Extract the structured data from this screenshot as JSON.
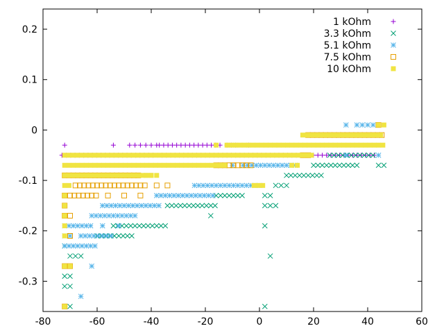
{
  "chart_data": {
    "type": "scatter",
    "title": "",
    "xlabel": "",
    "ylabel": "",
    "xlim": [
      -80,
      60
    ],
    "ylim": [
      -0.36,
      0.24
    ],
    "x_ticks": [
      -80,
      -60,
      -40,
      -20,
      0,
      20,
      40,
      60
    ],
    "x_tick_labels": [
      "-80",
      "-60",
      "-40",
      "-20",
      "0",
      "20",
      "40",
      "60"
    ],
    "y_ticks": [
      -0.3,
      -0.2,
      -0.1,
      0,
      0.1,
      0.2
    ],
    "y_tick_labels": [
      "-0.3",
      "-0.2",
      "-0.1",
      "0",
      "0.1",
      "0.2"
    ],
    "grid": false,
    "legend_position": "top-right",
    "series": [
      {
        "name": "1 kOhm",
        "color": "#9400d3",
        "marker": "plus",
        "segments": [
          {
            "x_from": -73,
            "x_to": -38,
            "step": 1.6,
            "y": -0.05
          },
          {
            "x_from": -36,
            "x_to": 43,
            "step": 1.6,
            "y": -0.05
          },
          {
            "x_from": -37,
            "x_to": -14,
            "step": 1.6,
            "y": -0.03
          },
          {
            "x_from": -12,
            "x_to": -8,
            "step": 1.6,
            "y": -0.03
          }
        ],
        "points": [
          [
            -72,
            -0.03
          ],
          [
            -54,
            -0.03
          ],
          [
            -48,
            -0.03
          ],
          [
            -46,
            -0.03
          ],
          [
            -44,
            -0.03
          ],
          [
            -42,
            -0.03
          ],
          [
            -40,
            -0.03
          ],
          [
            -38,
            -0.03
          ],
          [
            -4,
            -0.03
          ]
        ]
      },
      {
        "name": "3.3 kOhm",
        "color": "#009e73",
        "marker": "cross",
        "segments": [
          {
            "x_from": -54,
            "x_to": -34,
            "step": 1.6,
            "y": -0.19
          },
          {
            "x_from": -60,
            "x_to": -46,
            "step": 1.6,
            "y": -0.21
          },
          {
            "x_from": -34,
            "x_to": -16,
            "step": 1.6,
            "y": -0.15
          },
          {
            "x_from": -16,
            "x_to": -6,
            "step": 1.6,
            "y": -0.13
          },
          {
            "x_from": 20,
            "x_to": 36,
            "step": 1.6,
            "y": -0.07
          },
          {
            "x_from": 10,
            "x_to": 24,
            "step": 1.6,
            "y": -0.09
          },
          {
            "x_from": 26,
            "x_to": 42,
            "step": 1.6,
            "y": -0.05
          }
        ],
        "points": [
          [
            -72,
            -0.23
          ],
          [
            -70,
            -0.25
          ],
          [
            -68,
            -0.25
          ],
          [
            -66,
            -0.25
          ],
          [
            -72,
            -0.29
          ],
          [
            -70,
            -0.29
          ],
          [
            -72,
            -0.31
          ],
          [
            -70,
            -0.31
          ],
          [
            -70,
            -0.35
          ],
          [
            2,
            -0.35
          ],
          [
            4,
            -0.25
          ],
          [
            2,
            -0.19
          ],
          [
            2,
            -0.15
          ],
          [
            4,
            -0.15
          ],
          [
            6,
            -0.15
          ],
          [
            2,
            -0.13
          ],
          [
            4,
            -0.13
          ],
          [
            6,
            -0.11
          ],
          [
            8,
            -0.11
          ],
          [
            10,
            -0.11
          ],
          [
            -18,
            -0.17
          ],
          [
            44,
            -0.07
          ],
          [
            46,
            -0.07
          ]
        ]
      },
      {
        "name": "5.1 kOhm",
        "color": "#56b4e9",
        "marker": "star",
        "segments": [
          {
            "x_from": -72,
            "x_to": -62,
            "step": 1.6,
            "y": -0.19
          },
          {
            "x_from": -66,
            "x_to": -54,
            "step": 1.6,
            "y": -0.21
          },
          {
            "x_from": -72,
            "x_to": -60,
            "step": 1.6,
            "y": -0.23
          },
          {
            "x_from": -58,
            "x_to": -36,
            "step": 1.6,
            "y": -0.15
          },
          {
            "x_from": -62,
            "x_to": -46,
            "step": 1.6,
            "y": -0.17
          },
          {
            "x_from": -24,
            "x_to": 0,
            "step": 1.6,
            "y": -0.11
          },
          {
            "x_from": -38,
            "x_to": -16,
            "step": 1.6,
            "y": -0.13
          },
          {
            "x_from": -6,
            "x_to": 14,
            "step": 1.6,
            "y": -0.07
          }
        ],
        "points": [
          [
            -72,
            -0.21
          ],
          [
            -72,
            -0.27
          ],
          [
            -62,
            -0.27
          ],
          [
            -66,
            -0.33
          ],
          [
            -70,
            -0.21
          ],
          [
            32,
            0.01
          ],
          [
            36,
            0.01
          ],
          [
            38,
            0.01
          ],
          [
            40,
            0.01
          ],
          [
            42,
            0.01
          ],
          [
            44,
            0.01
          ],
          [
            22,
            -0.01
          ],
          [
            30,
            -0.01
          ],
          [
            42,
            -0.01
          ],
          [
            16,
            -0.05
          ],
          [
            18,
            -0.05
          ],
          [
            32,
            -0.05
          ],
          [
            44,
            -0.05
          ],
          [
            -10,
            -0.07
          ],
          [
            -58,
            -0.19
          ],
          [
            -52,
            -0.19
          ]
        ]
      },
      {
        "name": "7.5 kOhm",
        "color": "#e69f00",
        "marker": "square-open",
        "segments": [
          {
            "x_from": -68,
            "x_to": -42,
            "step": 1.6,
            "y": -0.11
          },
          {
            "x_from": -72,
            "x_to": -44,
            "step": 1.6,
            "y": -0.09
          },
          {
            "x_from": -70,
            "x_to": -60,
            "step": 1.6,
            "y": -0.13
          },
          {
            "x_from": 18,
            "x_to": 46,
            "step": 1.6,
            "y": -0.01
          },
          {
            "x_from": -16,
            "x_to": -2,
            "step": 1.6,
            "y": -0.07
          }
        ],
        "points": [
          [
            -72,
            -0.13
          ],
          [
            -72,
            -0.15
          ],
          [
            -72,
            -0.17
          ],
          [
            -70,
            -0.17
          ],
          [
            -70,
            -0.21
          ],
          [
            -72,
            -0.27
          ],
          [
            -70,
            -0.27
          ],
          [
            -72,
            -0.35
          ],
          [
            -56,
            -0.13
          ],
          [
            -50,
            -0.13
          ],
          [
            -44,
            -0.13
          ],
          [
            44,
            0.01
          ],
          [
            16,
            -0.05
          ],
          [
            18,
            -0.05
          ],
          [
            -38,
            -0.11
          ],
          [
            -34,
            -0.11
          ]
        ]
      },
      {
        "name": "10 kOhm",
        "color": "#f0e442",
        "marker": "square-filled",
        "segments": [
          {
            "x_from": -72,
            "x_to": -12,
            "step": 1.6,
            "y": -0.07
          },
          {
            "x_from": -72,
            "x_to": 20,
            "step": 1.6,
            "y": -0.05
          },
          {
            "x_from": -12,
            "x_to": 46,
            "step": 1.6,
            "y": -0.03
          },
          {
            "x_from": -72,
            "x_to": -40,
            "step": 1.6,
            "y": -0.09
          },
          {
            "x_from": 16,
            "x_to": 46,
            "step": 1.6,
            "y": -0.01
          },
          {
            "x_from": -2,
            "x_to": 2,
            "step": 1.6,
            "y": -0.11
          },
          {
            "x_from": -72,
            "x_to": -70,
            "step": 1.6,
            "y": -0.11
          }
        ],
        "points": [
          [
            -72,
            -0.13
          ],
          [
            -72,
            -0.15
          ],
          [
            -72,
            -0.17
          ],
          [
            -72,
            -0.19
          ],
          [
            -72,
            -0.21
          ],
          [
            -72,
            -0.27
          ],
          [
            -70,
            -0.27
          ],
          [
            -72,
            -0.35
          ],
          [
            -16,
            -0.03
          ],
          [
            -42,
            -0.09
          ],
          [
            -40,
            -0.09
          ],
          [
            -38,
            -0.09
          ],
          [
            44,
            0.01
          ],
          [
            46,
            0.01
          ],
          [
            14,
            -0.07
          ],
          [
            12,
            -0.07
          ]
        ]
      }
    ]
  }
}
